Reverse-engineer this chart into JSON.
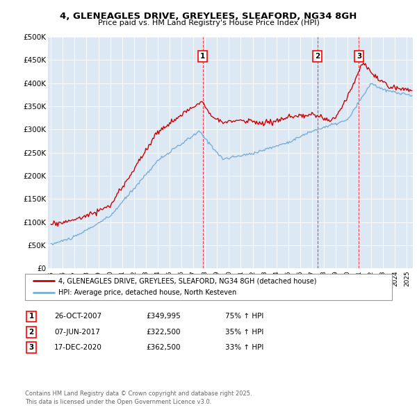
{
  "title_line1": "4, GLENEAGLES DRIVE, GREYLEES, SLEAFORD, NG34 8GH",
  "title_line2": "Price paid vs. HM Land Registry's House Price Index (HPI)",
  "plot_bg_color": "#dce9f5",
  "ylim": [
    0,
    500000
  ],
  "yticks": [
    0,
    50000,
    100000,
    150000,
    200000,
    250000,
    300000,
    350000,
    400000,
    450000,
    500000
  ],
  "ytick_labels": [
    "£0",
    "£50K",
    "£100K",
    "£150K",
    "£200K",
    "£250K",
    "£300K",
    "£350K",
    "£400K",
    "£450K",
    "£500K"
  ],
  "red_line_color": "#cc0000",
  "blue_line_color": "#7aaed6",
  "sale_labels": [
    "1",
    "2",
    "3"
  ],
  "legend_red": "4, GLENEAGLES DRIVE, GREYLEES, SLEAFORD, NG34 8GH (detached house)",
  "legend_blue": "HPI: Average price, detached house, North Kesteven",
  "table_rows": [
    [
      "1",
      "26-OCT-2007",
      "£349,995",
      "75% ↑ HPI"
    ],
    [
      "2",
      "07-JUN-2017",
      "£322,500",
      "35% ↑ HPI"
    ],
    [
      "3",
      "17-DEC-2020",
      "£362,500",
      "33% ↑ HPI"
    ]
  ],
  "footer": "Contains HM Land Registry data © Crown copyright and database right 2025.\nThis data is licensed under the Open Government Licence v3.0.",
  "xlim_start": 1994.75,
  "xlim_end": 2025.5
}
